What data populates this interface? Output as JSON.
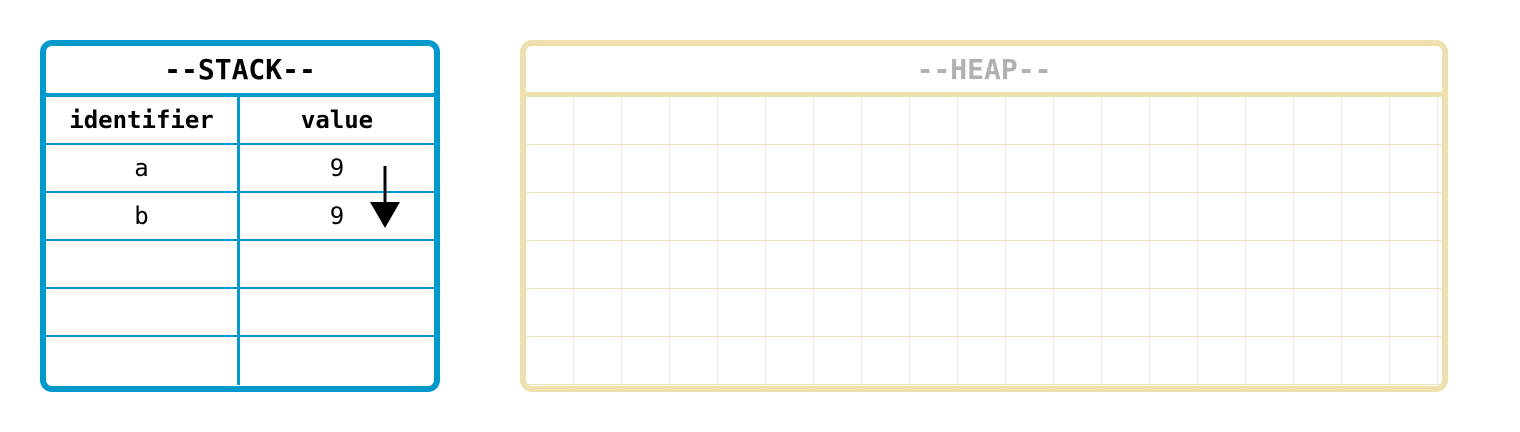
{
  "stack": {
    "title": "--STACK--",
    "headers": {
      "identifier": "identifier",
      "value": "value"
    },
    "rows": [
      {
        "identifier": "a",
        "value": "9"
      },
      {
        "identifier": "b",
        "value": "9"
      },
      {
        "identifier": "",
        "value": ""
      },
      {
        "identifier": "",
        "value": ""
      },
      {
        "identifier": "",
        "value": ""
      }
    ]
  },
  "heap": {
    "title": "--HEAP--"
  },
  "colors": {
    "stack_border": "#0099cc",
    "heap_border": "#f0e0b0",
    "heap_title": "#b0b0b0",
    "arrow": "#000000"
  },
  "arrow": {
    "from": "stack.rows.0.value",
    "to": "stack.rows.1.value",
    "icon": "arrow-down-icon"
  }
}
